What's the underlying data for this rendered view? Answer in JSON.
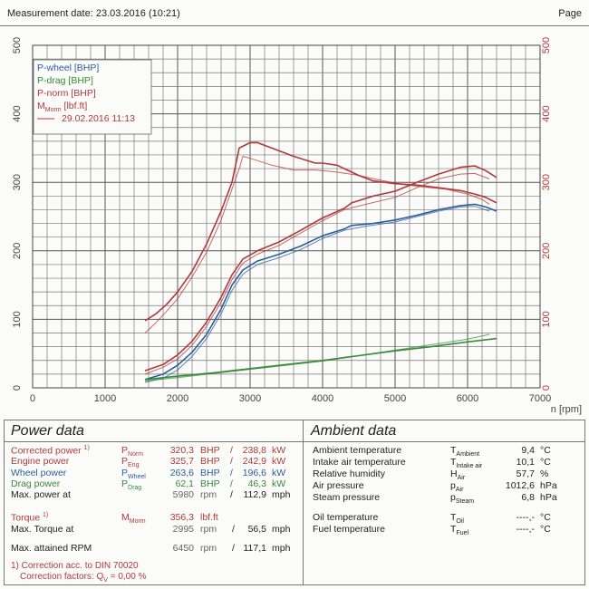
{
  "header": {
    "left": "Measurement date: 23.03.2016 (10:21)",
    "right": "Page"
  },
  "chart_data": {
    "type": "line",
    "xlabel": "n [rpm]",
    "xlim": [
      0,
      7000
    ],
    "ylim_left": [
      0,
      500
    ],
    "ylim_right": [
      0,
      500
    ],
    "x_ticks": [
      "0",
      "1000",
      "2000",
      "3000",
      "4000",
      "5000",
      "6000",
      "7000"
    ],
    "y_ticks": [
      "0",
      "100",
      "200",
      "300",
      "400",
      "500"
    ],
    "y_ticks_right": [
      "0",
      "100",
      "200",
      "300",
      "400",
      "500"
    ],
    "legend_position": "top-left",
    "legend": [
      {
        "label": "P-wheel [BHP]",
        "color": "#2a5e9e"
      },
      {
        "label": "P-drag [BHP]",
        "color": "#3a8a3a"
      },
      {
        "label": "P-norm [BHP]",
        "color": "#b03a3a"
      },
      {
        "label": "M",
        "sub": "Morm",
        "suffix": " [lbf.ft]",
        "color": "#b03a3a"
      },
      {
        "label": "29.02.2016 11:13",
        "color": "#b03a3a",
        "line": true
      }
    ],
    "series": [
      {
        "color": "#2a5e9e",
        "x": [
          1550,
          1800,
          2000,
          2200,
          2400,
          2600,
          2750,
          2900,
          3100,
          3400,
          3700,
          4000,
          4300,
          4400,
          4700,
          5000,
          5300,
          5600,
          5900,
          6100,
          6250,
          6400
        ],
        "values": [
          12,
          20,
          33,
          52,
          78,
          115,
          150,
          172,
          185,
          195,
          207,
          222,
          232,
          237,
          240,
          245,
          252,
          260,
          266,
          268,
          264,
          258
        ]
      },
      {
        "color": "#2a5e9e",
        "light": true,
        "x": [
          1550,
          1800,
          2000,
          2200,
          2400,
          2600,
          2750,
          2900,
          3100,
          3400,
          3700,
          4000,
          4300,
          4600,
          5000,
          5300,
          5600,
          5900,
          6100,
          6300
        ],
        "values": [
          8,
          14,
          26,
          46,
          72,
          108,
          142,
          166,
          180,
          190,
          202,
          218,
          230,
          236,
          242,
          250,
          258,
          264,
          265,
          258
        ]
      },
      {
        "color": "#b03a3a",
        "x": [
          1550,
          1800,
          2000,
          2200,
          2400,
          2600,
          2750,
          2900,
          3100,
          3400,
          3700,
          4000,
          4300,
          4400,
          4700,
          5000,
          5300,
          5600,
          5900,
          6100,
          6250,
          6400
        ],
        "values": [
          25,
          34,
          48,
          68,
          96,
          132,
          165,
          188,
          200,
          213,
          230,
          248,
          262,
          270,
          280,
          287,
          300,
          312,
          322,
          324,
          317,
          307
        ]
      },
      {
        "color": "#b03a3a",
        "light": true,
        "x": [
          1550,
          1800,
          2000,
          2200,
          2400,
          2600,
          2750,
          2900,
          3100,
          3400,
          3700,
          4000,
          4300,
          4600,
          5000,
          5300,
          5600,
          5900,
          6100,
          6300
        ],
        "values": [
          20,
          30,
          42,
          62,
          90,
          125,
          158,
          182,
          195,
          208,
          226,
          244,
          260,
          268,
          278,
          292,
          305,
          312,
          313,
          305
        ]
      },
      {
        "color": "#b03a3a",
        "x": [
          1550,
          1700,
          1850,
          2000,
          2200,
          2400,
          2600,
          2750,
          2850,
          3000,
          3100,
          3300,
          3600,
          3900,
          4000,
          4200,
          4300,
          4500,
          4700,
          5000,
          5300,
          5600,
          5900,
          6100,
          6250,
          6400
        ],
        "values": [
          98,
          108,
          122,
          140,
          170,
          210,
          258,
          300,
          350,
          358,
          358,
          350,
          338,
          328,
          328,
          325,
          320,
          310,
          302,
          298,
          296,
          292,
          288,
          283,
          278,
          270
        ]
      },
      {
        "color": "#b03a3a",
        "light": true,
        "x": [
          1550,
          1700,
          1850,
          2000,
          2200,
          2400,
          2600,
          2750,
          2850,
          2900,
          3000,
          3300,
          3600,
          3900,
          4200,
          4500,
          4800,
          5100,
          5400,
          5700,
          6000,
          6200,
          6300
        ],
        "values": [
          80,
          95,
          112,
          130,
          162,
          198,
          245,
          290,
          320,
          338,
          335,
          325,
          318,
          318,
          315,
          310,
          303,
          297,
          293,
          290,
          283,
          275,
          268
        ]
      },
      {
        "color": "#3a8a3a",
        "x": [
          1550,
          2000,
          2500,
          3000,
          3500,
          4000,
          4500,
          5000,
          5500,
          6000,
          6400
        ],
        "values": [
          12,
          17,
          22,
          28,
          34,
          40,
          47,
          54,
          60,
          67,
          72
        ]
      },
      {
        "color": "#3a8a3a",
        "light": true,
        "x": [
          1550,
          2000,
          2500,
          3000,
          3500,
          4000,
          4500,
          5000,
          5500,
          6000,
          6300
        ],
        "values": [
          10,
          15,
          21,
          27,
          33,
          39,
          47,
          55,
          63,
          71,
          78
        ]
      }
    ]
  },
  "power": {
    "title": "Power data",
    "rows": [
      {
        "label": "Corrected power ",
        "foot": "1)",
        "sym": "P",
        "sub": "Norm",
        "v1": "320,3",
        "u1": "BHP",
        "sep": "/",
        "v2": "238,8",
        "u2": "kW"
      },
      {
        "label": "Engine power",
        "foot": "",
        "sym": "P",
        "sub": "Eng",
        "v1": "325,7",
        "u1": "BHP",
        "sep": "/",
        "v2": "242,9",
        "u2": "kW"
      },
      {
        "label": "Wheel power",
        "foot": "",
        "sym": "P",
        "sub": "Wheel",
        "v1": "263,6",
        "u1": "BHP",
        "sep": "/",
        "v2": "196,6",
        "u2": "kW"
      },
      {
        "label": "Drag power",
        "foot": "",
        "sym": "P",
        "sub": "Drag",
        "v1": "62,1",
        "u1": "BHP",
        "sep": "/",
        "v2": "46,3",
        "u2": "kW"
      },
      {
        "label": "Max. power at",
        "foot": "",
        "sym": "",
        "sub": "",
        "v1": "5980",
        "u1": "rpm",
        "sep": "/",
        "v2": "112,9",
        "u2": "mph"
      }
    ],
    "torque": {
      "label": "Torque ",
      "foot": "1)",
      "sym": "M",
      "sub": "Morm",
      "v1": "356,3",
      "u1": "lbf.ft"
    },
    "torque_at": {
      "label": "Max. Torque at",
      "v1": "2995",
      "u1": "rpm",
      "sep": "/",
      "v2": "56,5",
      "u2": "mph"
    },
    "max_rpm": {
      "label": "Max. attained RPM",
      "v1": "6450",
      "u1": "rpm",
      "sep": "/",
      "v2": "117,1",
      "u2": "mph"
    },
    "note1": "1) Correction acc. to DIN 70020",
    "note2": "Correction factors: Q",
    "note2_sub": "V",
    "note2_rest": " =   0,00 %"
  },
  "ambient": {
    "title": "Ambient data",
    "rows": [
      {
        "label": "Ambient temperature",
        "sym": "T",
        "sub": "Ambient",
        "val": "9,4",
        "unit": "°C"
      },
      {
        "label": "Intake air temperature",
        "sym": "T",
        "sub": "Intake air",
        "val": "10,1",
        "unit": "°C"
      },
      {
        "label": "Relative humidity",
        "sym": "H",
        "sub": "Air",
        "val": "57,7",
        "unit": "%"
      },
      {
        "label": "Air pressure",
        "sym": "p",
        "sub": "Air",
        "val": "1012,6",
        "unit": "hPa"
      },
      {
        "label": "Steam pressure",
        "sym": "p",
        "sub": "Steam",
        "val": "6,8",
        "unit": "hPa"
      }
    ],
    "rows2": [
      {
        "label": "Oil temperature",
        "sym": "T",
        "sub": "Oil",
        "val": "----,-",
        "unit": "°C"
      },
      {
        "label": "Fuel temperature",
        "sym": "T",
        "sub": "Fuel",
        "val": "----,-",
        "unit": "°C"
      }
    ]
  }
}
